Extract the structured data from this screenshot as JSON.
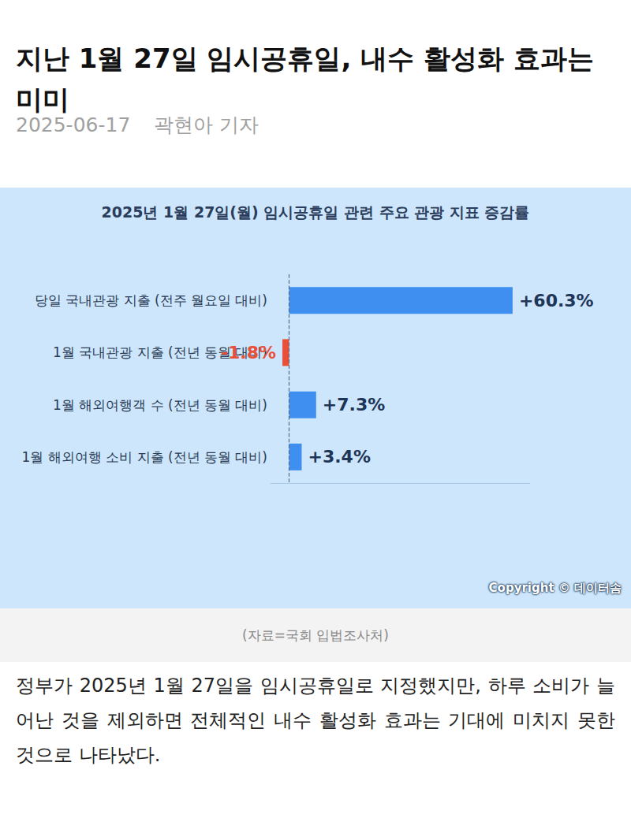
{
  "header": {
    "title": "지난 1월 27일 임시공휴일, 내수 활성화 효과는 미미",
    "date": "2025-06-17",
    "reporter": "곽현아 기자"
  },
  "chart_data": {
    "type": "bar",
    "orientation": "horizontal",
    "title": "2025년 1월 27일(월) 임시공휴일 관련 주요 관광 지표 증감률",
    "categories": [
      "당일 국내관광 지출 (전주 월요일 대비)",
      "1월 국내관광 지출 (전년 동월 대비)",
      "1월 해외여행객 수 (전년 동월 대비)",
      "1월 해외여행 소비 지출 (전년 동월 대비)"
    ],
    "values": [
      60.3,
      -1.8,
      7.3,
      3.4
    ],
    "value_labels": [
      "+60.3%",
      "-1.8%",
      "+7.3%",
      "+3.4%"
    ],
    "colors": [
      "#3f8ff0",
      "#e8503a",
      "#3f8ff0",
      "#3f8ff0"
    ],
    "xlim": [
      -5,
      65
    ],
    "xticks": [
      0
    ],
    "grid": true,
    "tick_labels": false,
    "data_labels": true
  },
  "credit": "Copyright © 데이터솜",
  "source": "(자료=국회 입법조사처)",
  "body": "정부가 2025년 1월 27일을 임시공휴일로 지정했지만, 하루 소비가 늘어난 것을 제외하면 전체적인 내수 활성화 효과는 기대에 미치지 못한 것으로 나타났다."
}
